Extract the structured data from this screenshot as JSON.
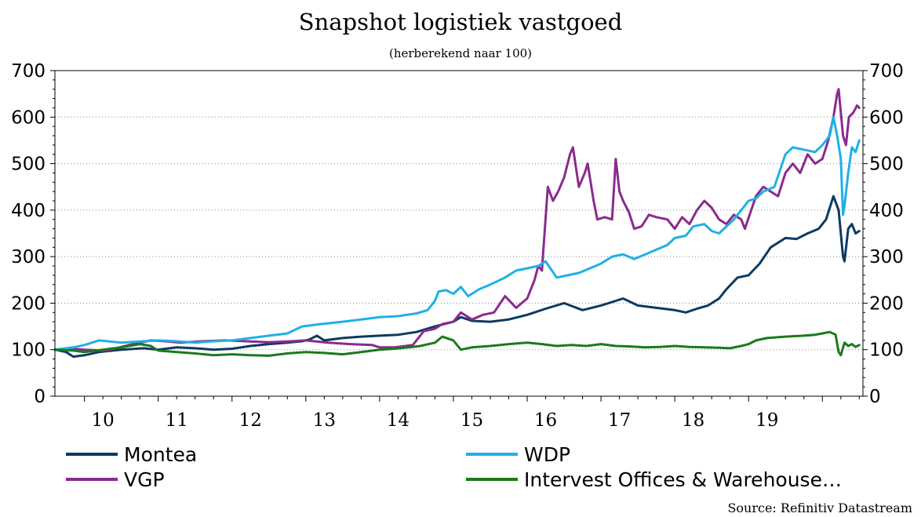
{
  "chart_data": {
    "type": "line",
    "title": "Snapshot logistiek vastgoed",
    "subtitle": "(herberekend naar 100)",
    "source": "Source: Refinitiv Datastream",
    "xlabel": "",
    "ylabel": "",
    "ylim": [
      0,
      700
    ],
    "yticks": [
      "0",
      "100",
      "200",
      "300",
      "400",
      "500",
      "600",
      "700"
    ],
    "xlim": [
      2009.6,
      2020.55
    ],
    "year_labels": [
      {
        "label": "10",
        "x": 2010.25
      },
      {
        "label": "11",
        "x": 2011.25
      },
      {
        "label": "12",
        "x": 2012.25
      },
      {
        "label": "13",
        "x": 2013.25
      },
      {
        "label": "14",
        "x": 2014.25
      },
      {
        "label": "15",
        "x": 2015.25
      },
      {
        "label": "16",
        "x": 2016.25
      },
      {
        "label": "17",
        "x": 2017.25
      },
      {
        "label": "18",
        "x": 2018.25
      },
      {
        "label": "19",
        "x": 2019.25
      }
    ],
    "grid": "horizontal dotted",
    "legend_position": "bottom",
    "series": [
      {
        "name": "Montea",
        "color": "#0d3a61",
        "points": [
          [
            2009.6,
            100
          ],
          [
            2009.75,
            95
          ],
          [
            2009.85,
            85
          ],
          [
            2010.0,
            88
          ],
          [
            2010.2,
            95
          ],
          [
            2010.5,
            100
          ],
          [
            2010.8,
            103
          ],
          [
            2011.0,
            100
          ],
          [
            2011.25,
            105
          ],
          [
            2011.5,
            103
          ],
          [
            2011.75,
            100
          ],
          [
            2012.0,
            102
          ],
          [
            2012.25,
            108
          ],
          [
            2012.5,
            112
          ],
          [
            2012.75,
            115
          ],
          [
            2012.95,
            118
          ],
          [
            2013.05,
            122
          ],
          [
            2013.15,
            130
          ],
          [
            2013.25,
            120
          ],
          [
            2013.5,
            125
          ],
          [
            2013.75,
            128
          ],
          [
            2014.0,
            130
          ],
          [
            2014.25,
            132
          ],
          [
            2014.5,
            138
          ],
          [
            2014.75,
            150
          ],
          [
            2015.0,
            160
          ],
          [
            2015.1,
            170
          ],
          [
            2015.25,
            162
          ],
          [
            2015.5,
            160
          ],
          [
            2015.75,
            165
          ],
          [
            2016.0,
            175
          ],
          [
            2016.25,
            188
          ],
          [
            2016.5,
            200
          ],
          [
            2016.75,
            185
          ],
          [
            2017.0,
            195
          ],
          [
            2017.2,
            205
          ],
          [
            2017.3,
            210
          ],
          [
            2017.5,
            195
          ],
          [
            2017.75,
            190
          ],
          [
            2018.0,
            185
          ],
          [
            2018.15,
            180
          ],
          [
            2018.3,
            188
          ],
          [
            2018.45,
            195
          ],
          [
            2018.6,
            210
          ],
          [
            2018.7,
            230
          ],
          [
            2018.85,
            255
          ],
          [
            2019.0,
            260
          ],
          [
            2019.15,
            285
          ],
          [
            2019.3,
            320
          ],
          [
            2019.5,
            340
          ],
          [
            2019.65,
            338
          ],
          [
            2019.8,
            350
          ],
          [
            2019.95,
            360
          ],
          [
            2020.05,
            380
          ],
          [
            2020.15,
            430
          ],
          [
            2020.22,
            400
          ],
          [
            2020.28,
            300
          ],
          [
            2020.3,
            290
          ],
          [
            2020.35,
            360
          ],
          [
            2020.4,
            370
          ],
          [
            2020.45,
            350
          ],
          [
            2020.5,
            355
          ]
        ]
      },
      {
        "name": "VGP",
        "color": "#8b2a8e",
        "points": [
          [
            2009.6,
            100
          ],
          [
            2009.8,
            102
          ],
          [
            2010.0,
            100
          ],
          [
            2010.3,
            98
          ],
          [
            2010.6,
            110
          ],
          [
            2010.9,
            120
          ],
          [
            2011.1,
            118
          ],
          [
            2011.3,
            115
          ],
          [
            2011.6,
            118
          ],
          [
            2011.9,
            120
          ],
          [
            2012.2,
            118
          ],
          [
            2012.5,
            116
          ],
          [
            2012.8,
            118
          ],
          [
            2013.0,
            120
          ],
          [
            2013.3,
            115
          ],
          [
            2013.6,
            112
          ],
          [
            2013.9,
            110
          ],
          [
            2014.0,
            105
          ],
          [
            2014.2,
            105
          ],
          [
            2014.45,
            110
          ],
          [
            2014.6,
            140
          ],
          [
            2014.75,
            145
          ],
          [
            2014.85,
            155
          ],
          [
            2015.0,
            160
          ],
          [
            2015.1,
            180
          ],
          [
            2015.25,
            165
          ],
          [
            2015.4,
            175
          ],
          [
            2015.55,
            180
          ],
          [
            2015.7,
            215
          ],
          [
            2015.85,
            190
          ],
          [
            2016.0,
            210
          ],
          [
            2016.1,
            250
          ],
          [
            2016.15,
            280
          ],
          [
            2016.2,
            270
          ],
          [
            2016.28,
            450
          ],
          [
            2016.35,
            420
          ],
          [
            2016.42,
            440
          ],
          [
            2016.5,
            470
          ],
          [
            2016.58,
            520
          ],
          [
            2016.62,
            535
          ],
          [
            2016.7,
            450
          ],
          [
            2016.78,
            480
          ],
          [
            2016.82,
            500
          ],
          [
            2016.9,
            420
          ],
          [
            2016.95,
            380
          ],
          [
            2017.05,
            385
          ],
          [
            2017.15,
            380
          ],
          [
            2017.2,
            510
          ],
          [
            2017.25,
            440
          ],
          [
            2017.3,
            420
          ],
          [
            2017.38,
            395
          ],
          [
            2017.45,
            360
          ],
          [
            2017.55,
            365
          ],
          [
            2017.65,
            390
          ],
          [
            2017.75,
            385
          ],
          [
            2017.9,
            380
          ],
          [
            2018.0,
            360
          ],
          [
            2018.1,
            385
          ],
          [
            2018.2,
            370
          ],
          [
            2018.3,
            400
          ],
          [
            2018.4,
            420
          ],
          [
            2018.5,
            405
          ],
          [
            2018.6,
            380
          ],
          [
            2018.7,
            370
          ],
          [
            2018.8,
            390
          ],
          [
            2018.9,
            380
          ],
          [
            2018.95,
            360
          ],
          [
            2019.1,
            430
          ],
          [
            2019.2,
            450
          ],
          [
            2019.3,
            440
          ],
          [
            2019.4,
            430
          ],
          [
            2019.5,
            480
          ],
          [
            2019.6,
            500
          ],
          [
            2019.7,
            480
          ],
          [
            2019.8,
            520
          ],
          [
            2019.9,
            500
          ],
          [
            2020.0,
            510
          ],
          [
            2020.08,
            550
          ],
          [
            2020.15,
            600
          ],
          [
            2020.2,
            650
          ],
          [
            2020.22,
            660
          ],
          [
            2020.28,
            560
          ],
          [
            2020.32,
            540
          ],
          [
            2020.36,
            600
          ],
          [
            2020.42,
            610
          ],
          [
            2020.47,
            625
          ],
          [
            2020.5,
            620
          ]
        ]
      },
      {
        "name": "WDP",
        "color": "#1fb0e8",
        "points": [
          [
            2009.6,
            100
          ],
          [
            2009.85,
            105
          ],
          [
            2010.0,
            110
          ],
          [
            2010.2,
            120
          ],
          [
            2010.5,
            115
          ],
          [
            2010.8,
            118
          ],
          [
            2011.0,
            120
          ],
          [
            2011.25,
            118
          ],
          [
            2011.5,
            115
          ],
          [
            2011.75,
            118
          ],
          [
            2012.0,
            120
          ],
          [
            2012.25,
            125
          ],
          [
            2012.5,
            130
          ],
          [
            2012.75,
            135
          ],
          [
            2012.95,
            150
          ],
          [
            2013.2,
            155
          ],
          [
            2013.5,
            160
          ],
          [
            2013.75,
            165
          ],
          [
            2014.0,
            170
          ],
          [
            2014.25,
            172
          ],
          [
            2014.5,
            178
          ],
          [
            2014.65,
            185
          ],
          [
            2014.75,
            205
          ],
          [
            2014.8,
            225
          ],
          [
            2014.9,
            228
          ],
          [
            2015.0,
            220
          ],
          [
            2015.1,
            235
          ],
          [
            2015.2,
            215
          ],
          [
            2015.35,
            230
          ],
          [
            2015.5,
            240
          ],
          [
            2015.7,
            255
          ],
          [
            2015.85,
            270
          ],
          [
            2016.0,
            275
          ],
          [
            2016.15,
            280
          ],
          [
            2016.25,
            290
          ],
          [
            2016.4,
            255
          ],
          [
            2016.55,
            260
          ],
          [
            2016.7,
            265
          ],
          [
            2016.85,
            275
          ],
          [
            2017.0,
            285
          ],
          [
            2017.15,
            300
          ],
          [
            2017.3,
            305
          ],
          [
            2017.45,
            295
          ],
          [
            2017.6,
            305
          ],
          [
            2017.75,
            315
          ],
          [
            2017.9,
            325
          ],
          [
            2018.0,
            340
          ],
          [
            2018.15,
            345
          ],
          [
            2018.25,
            365
          ],
          [
            2018.4,
            370
          ],
          [
            2018.5,
            355
          ],
          [
            2018.6,
            350
          ],
          [
            2018.7,
            365
          ],
          [
            2018.8,
            380
          ],
          [
            2018.9,
            400
          ],
          [
            2019.0,
            420
          ],
          [
            2019.1,
            425
          ],
          [
            2019.2,
            440
          ],
          [
            2019.35,
            450
          ],
          [
            2019.5,
            520
          ],
          [
            2019.6,
            535
          ],
          [
            2019.75,
            530
          ],
          [
            2019.9,
            525
          ],
          [
            2020.0,
            540
          ],
          [
            2020.1,
            560
          ],
          [
            2020.15,
            600
          ],
          [
            2020.2,
            560
          ],
          [
            2020.25,
            510
          ],
          [
            2020.28,
            390
          ],
          [
            2020.3,
            410
          ],
          [
            2020.35,
            480
          ],
          [
            2020.4,
            535
          ],
          [
            2020.45,
            525
          ],
          [
            2020.5,
            550
          ]
        ]
      },
      {
        "name": "Intervest Offices & Warehouse…",
        "color": "#1a7a1a",
        "points": [
          [
            2009.6,
            100
          ],
          [
            2009.85,
            98
          ],
          [
            2010.0,
            95
          ],
          [
            2010.25,
            100
          ],
          [
            2010.5,
            105
          ],
          [
            2010.75,
            112
          ],
          [
            2010.9,
            108
          ],
          [
            2011.0,
            98
          ],
          [
            2011.25,
            95
          ],
          [
            2011.5,
            92
          ],
          [
            2011.75,
            88
          ],
          [
            2012.0,
            90
          ],
          [
            2012.25,
            88
          ],
          [
            2012.5,
            87
          ],
          [
            2012.75,
            92
          ],
          [
            2013.0,
            95
          ],
          [
            2013.25,
            93
          ],
          [
            2013.5,
            90
          ],
          [
            2013.75,
            95
          ],
          [
            2014.0,
            100
          ],
          [
            2014.2,
            102
          ],
          [
            2014.4,
            105
          ],
          [
            2014.55,
            108
          ],
          [
            2014.75,
            115
          ],
          [
            2014.85,
            128
          ],
          [
            2015.0,
            120
          ],
          [
            2015.1,
            100
          ],
          [
            2015.25,
            105
          ],
          [
            2015.5,
            108
          ],
          [
            2015.75,
            112
          ],
          [
            2016.0,
            115
          ],
          [
            2016.2,
            112
          ],
          [
            2016.4,
            108
          ],
          [
            2016.6,
            110
          ],
          [
            2016.8,
            108
          ],
          [
            2017.0,
            112
          ],
          [
            2017.2,
            108
          ],
          [
            2017.4,
            107
          ],
          [
            2017.6,
            105
          ],
          [
            2017.8,
            106
          ],
          [
            2018.0,
            108
          ],
          [
            2018.2,
            106
          ],
          [
            2018.4,
            105
          ],
          [
            2018.6,
            104
          ],
          [
            2018.75,
            103
          ],
          [
            2018.9,
            108
          ],
          [
            2019.0,
            112
          ],
          [
            2019.1,
            120
          ],
          [
            2019.25,
            125
          ],
          [
            2019.5,
            128
          ],
          [
            2019.75,
            130
          ],
          [
            2019.9,
            132
          ],
          [
            2020.0,
            135
          ],
          [
            2020.1,
            138
          ],
          [
            2020.18,
            132
          ],
          [
            2020.22,
            95
          ],
          [
            2020.25,
            88
          ],
          [
            2020.3,
            115
          ],
          [
            2020.35,
            108
          ],
          [
            2020.4,
            112
          ],
          [
            2020.45,
            106
          ],
          [
            2020.5,
            110
          ]
        ]
      }
    ]
  }
}
